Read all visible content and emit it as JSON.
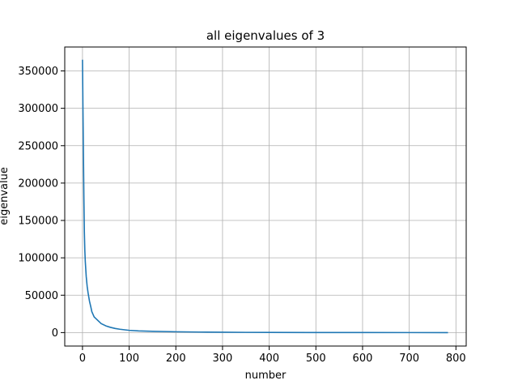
{
  "chart_data": {
    "type": "line",
    "title": "all eigenvalues of 3",
    "xlabel": "number",
    "ylabel": "eigenvalue",
    "xlim": [
      -38,
      822
    ],
    "ylim": [
      -18000,
      382000
    ],
    "xticks": [
      0,
      100,
      200,
      300,
      400,
      500,
      600,
      700,
      800
    ],
    "yticks": [
      0,
      50000,
      100000,
      150000,
      200000,
      250000,
      300000,
      350000
    ],
    "grid": true,
    "line_color": "#1f77b4",
    "series": [
      {
        "x": [
          0,
          1,
          2,
          3,
          4,
          5,
          6,
          7,
          8,
          10,
          12,
          15,
          18,
          20,
          25,
          30,
          35,
          40,
          50,
          60,
          70,
          80,
          100,
          120,
          150,
          200,
          250,
          300,
          350,
          400,
          500,
          600,
          700,
          783
        ],
        "y": [
          365000,
          300000,
          240000,
          180000,
          135000,
          110000,
          95000,
          85000,
          75000,
          62000,
          53000,
          42000,
          34000,
          28000,
          21000,
          18000,
          15000,
          12000,
          9000,
          7000,
          5500,
          4500,
          3000,
          2300,
          1700,
          1100,
          700,
          450,
          300,
          200,
          100,
          50,
          20,
          5
        ]
      }
    ]
  }
}
